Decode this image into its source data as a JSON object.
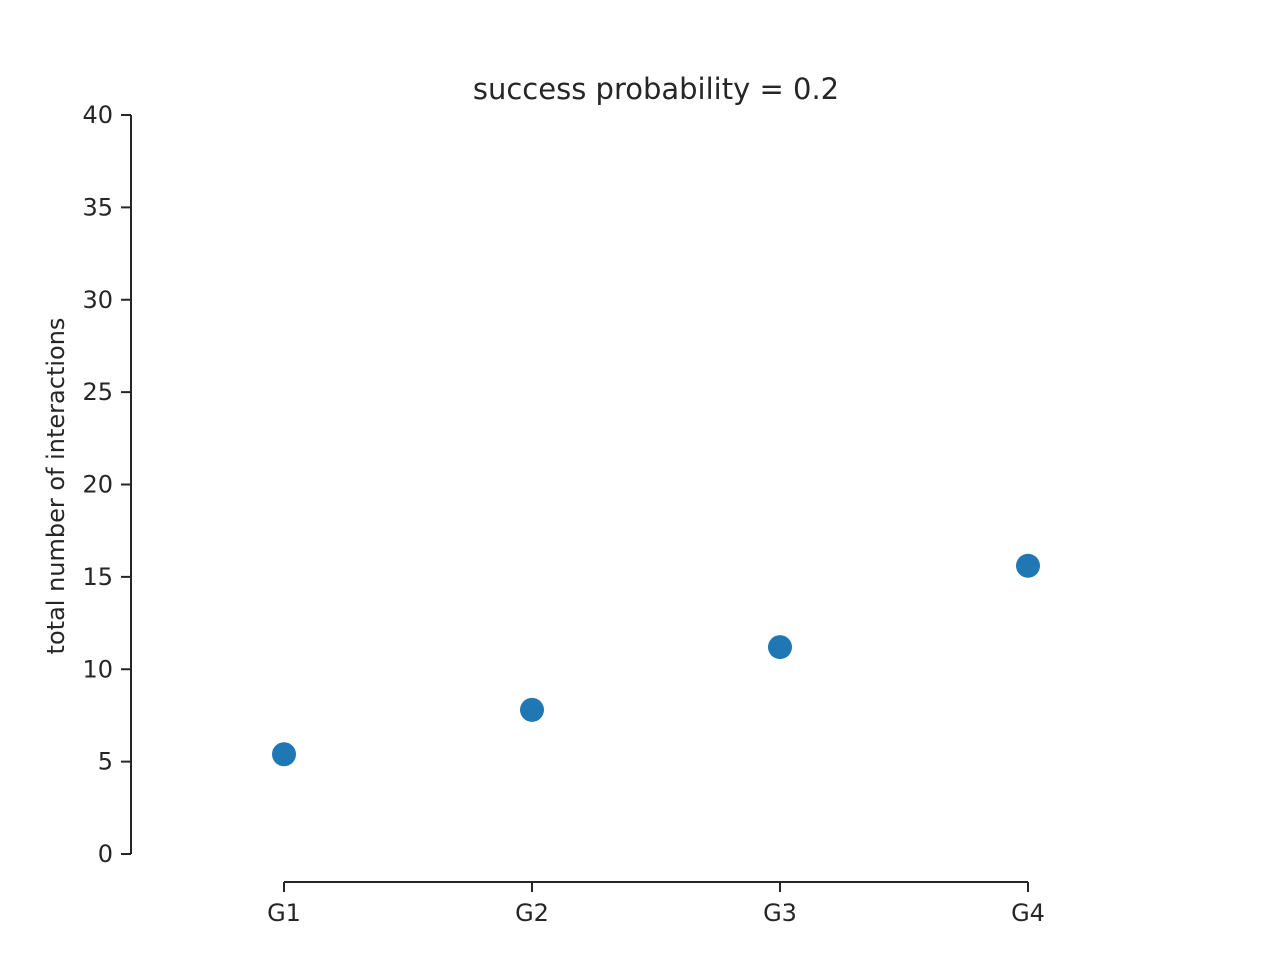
{
  "chart_data": {
    "type": "scatter",
    "title": "success probability = 0.2",
    "xlabel": "",
    "ylabel": "total number of interactions",
    "categories": [
      "G1",
      "G2",
      "G3",
      "G4"
    ],
    "series": [
      {
        "values": [
          5.4,
          7.8,
          11.2,
          15.6
        ]
      }
    ],
    "ylim": [
      0,
      40
    ],
    "yticks": [
      "0",
      "5",
      "10",
      "15",
      "20",
      "25",
      "30",
      "35",
      "40"
    ],
    "grid": false,
    "legend": "none",
    "colors": {
      "point": "#1f77b4",
      "axis": "#262626"
    }
  }
}
